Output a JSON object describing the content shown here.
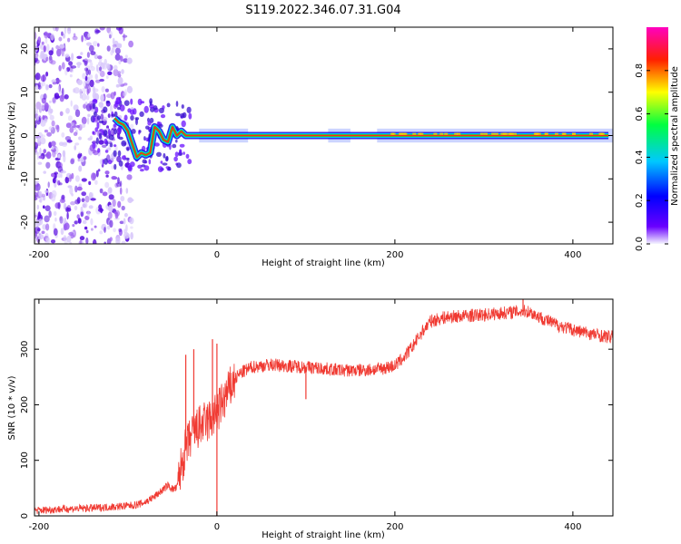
{
  "title": "S119.2022.346.07.31.G04",
  "colors": {
    "snr_line": "#f03a32",
    "ridge_green": "#22dd22",
    "ridge_red": "#ff2222",
    "scatter_purple": "#7b1fe8",
    "colormap_stops": [
      "#f5f5ff",
      "#6a00ff",
      "#0000ff",
      "#00c8ff",
      "#00ff40",
      "#ffff00",
      "#ff2000",
      "#ff00c0"
    ]
  },
  "chart_data": [
    {
      "type": "heatmap",
      "xlabel": "Height of straight line (km)",
      "ylabel": "Frequency (Hz)",
      "xlim": [
        -205,
        445
      ],
      "ylim": [
        -25,
        25
      ],
      "xticks": [
        -200,
        0,
        200,
        400
      ],
      "yticks": [
        -20,
        -10,
        0,
        10,
        20
      ],
      "grid": false,
      "ridge": [
        {
          "x": -115,
          "y": 4
        },
        {
          "x": -110,
          "y": 3
        },
        {
          "x": -105,
          "y": 2.5
        },
        {
          "x": -100,
          "y": 1
        },
        {
          "x": -95,
          "y": -2
        },
        {
          "x": -90,
          "y": -5
        },
        {
          "x": -85,
          "y": -4
        },
        {
          "x": -80,
          "y": -4.5
        },
        {
          "x": -75,
          "y": -4
        },
        {
          "x": -70,
          "y": 2
        },
        {
          "x": -65,
          "y": 1
        },
        {
          "x": -60,
          "y": -1
        },
        {
          "x": -55,
          "y": -1.5
        },
        {
          "x": -50,
          "y": 2
        },
        {
          "x": -45,
          "y": 0
        },
        {
          "x": -40,
          "y": 1
        },
        {
          "x": -35,
          "y": 0
        },
        {
          "x": -30,
          "y": 0
        },
        {
          "x": 440,
          "y": 0
        }
      ],
      "colorbar": {
        "label": "Normalized spectral amplitude",
        "range": [
          0,
          1
        ],
        "ticks": [
          "0.0",
          "0.2",
          "0.4",
          "0.6",
          "0.8"
        ]
      }
    },
    {
      "type": "line",
      "xlabel": "Height of straight line (km)",
      "ylabel": "SNR (10 * v/v)",
      "xlim": [
        -205,
        445
      ],
      "ylim": [
        0,
        390
      ],
      "xticks": [
        -200,
        0,
        200,
        400
      ],
      "yticks": [
        0,
        100,
        200,
        300
      ],
      "grid": false,
      "series": [
        {
          "x": [
            -200,
            -180,
            -160,
            -140,
            -120,
            -100,
            -90,
            -80,
            -70,
            -60,
            -55,
            -50,
            -45,
            -40,
            -35,
            -30,
            -25,
            -20,
            -15,
            -10,
            -5,
            0,
            5,
            10,
            15,
            20,
            25,
            30,
            40,
            50,
            60,
            80,
            100,
            120,
            140,
            160,
            180,
            200,
            210,
            220,
            230,
            240,
            250,
            260,
            280,
            300,
            320,
            340,
            350,
            360,
            380,
            400,
            420,
            440
          ],
          "values": [
            10,
            12,
            13,
            14,
            16,
            18,
            20,
            25,
            35,
            48,
            55,
            48,
            50,
            90,
            120,
            140,
            150,
            160,
            165,
            170,
            175,
            185,
            200,
            215,
            230,
            245,
            255,
            260,
            268,
            270,
            272,
            270,
            268,
            265,
            262,
            262,
            264,
            270,
            285,
            305,
            330,
            350,
            355,
            358,
            360,
            362,
            365,
            368,
            368,
            360,
            345,
            335,
            328,
            322
          ],
          "spikes": [
            {
              "x": -35,
              "y": 290
            },
            {
              "x": -26,
              "y": 300
            },
            {
              "x": -5,
              "y": 318
            },
            {
              "x": 0,
              "y": 310
            },
            {
              "x": 100,
              "y": 210
            },
            {
              "x": 344,
              "y": 392
            }
          ]
        }
      ]
    }
  ]
}
